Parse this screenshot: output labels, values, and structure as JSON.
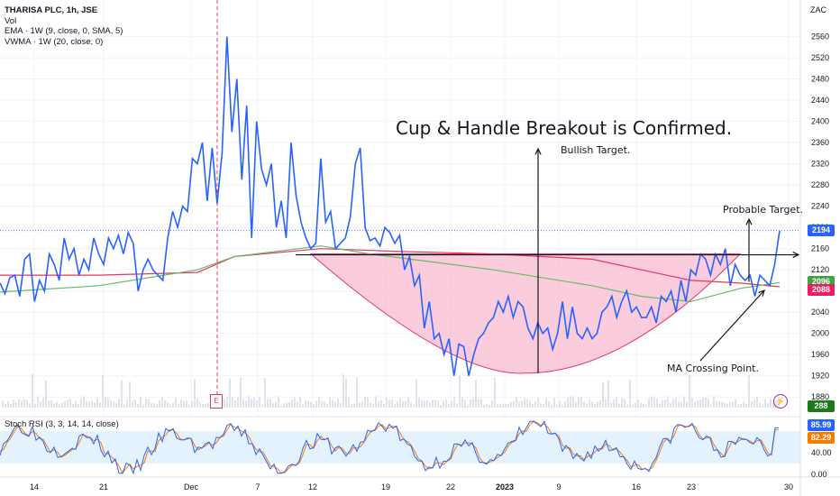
{
  "header": {
    "symbol": "THARISA PLC, 1h, JSE",
    "vol": "Vol",
    "ema": "EMA · 1W (9, close, 0, SMA, 5)",
    "vwma": "VWMA · 1W (20, close, 0)",
    "currency": "ZAC"
  },
  "annotations": {
    "title": "Cup & Handle Breakout is Confirmed.",
    "bullish_target": "Bullish Target.",
    "probable_target": "Probable Target.",
    "ma_crossing": "MA Crossing Point."
  },
  "badges": {
    "price": "2194",
    "ma_green": "2096",
    "ma_red": "2088",
    "volume": "288",
    "stoch_k": "85.99",
    "stoch_d": "82.29",
    "price_color": "#2962ff",
    "green_color": "#43a047",
    "red_color": "#e91e63",
    "volume_color": "#1b7a1b",
    "k_color": "#2962ff",
    "d_color": "#f57c00"
  },
  "events": {
    "earnings_flag": "E",
    "alert_icon": "lightning-icon"
  },
  "stoch": {
    "label": "Stoch RSI (3, 3, 14, 14, close)",
    "ticks": [
      "40.00",
      "0.00"
    ],
    "levels": [
      80,
      20
    ]
  },
  "chart_data": {
    "type": "line",
    "symbol": "THARISA PLC",
    "interval": "1h",
    "exchange": "JSE",
    "y_ticks": [
      1880,
      1920,
      1960,
      2000,
      2040,
      2080,
      2120,
      2160,
      2200,
      2240,
      2280,
      2320,
      2360,
      2400,
      2440,
      2480,
      2520,
      2560
    ],
    "x_ticks": [
      "14",
      "21",
      "Dec",
      "7",
      "12",
      "19",
      "22",
      "2023",
      "9",
      "16",
      "23",
      "30"
    ],
    "ylim": [
      1860,
      2595
    ],
    "price_series": [
      [
        0,
        2095
      ],
      [
        2,
        2075
      ],
      [
        4,
        2105
      ],
      [
        6,
        2110
      ],
      [
        8,
        2070
      ],
      [
        10,
        2140
      ],
      [
        12,
        2150
      ],
      [
        14,
        2060
      ],
      [
        16,
        2100
      ],
      [
        18,
        2080
      ],
      [
        20,
        2150
      ],
      [
        22,
        2130
      ],
      [
        24,
        2100
      ],
      [
        26,
        2180
      ],
      [
        28,
        2140
      ],
      [
        30,
        2160
      ],
      [
        32,
        2110
      ],
      [
        34,
        2140
      ],
      [
        36,
        2120
      ],
      [
        38,
        2180
      ],
      [
        40,
        2150
      ],
      [
        42,
        2130
      ],
      [
        44,
        2180
      ],
      [
        46,
        2160
      ],
      [
        48,
        2185
      ],
      [
        50,
        2150
      ],
      [
        52,
        2190
      ],
      [
        54,
        2170
      ],
      [
        56,
        2080
      ],
      [
        58,
        2120
      ],
      [
        60,
        2140
      ],
      [
        62,
        2120
      ],
      [
        64,
        2110
      ],
      [
        66,
        2100
      ],
      [
        68,
        2180
      ],
      [
        70,
        2230
      ],
      [
        72,
        2200
      ],
      [
        74,
        2240
      ],
      [
        76,
        2230
      ],
      [
        78,
        2330
      ],
      [
        80,
        2320
      ],
      [
        82,
        2360
      ],
      [
        84,
        2250
      ],
      [
        86,
        2350
      ],
      [
        88,
        2245
      ],
      [
        90,
        2340
      ],
      [
        92,
        2560
      ],
      [
        94,
        2380
      ],
      [
        96,
        2480
      ],
      [
        98,
        2290
      ],
      [
        100,
        2430
      ],
      [
        102,
        2180
      ],
      [
        104,
        2400
      ],
      [
        106,
        2310
      ],
      [
        108,
        2280
      ],
      [
        110,
        2320
      ],
      [
        112,
        2200
      ],
      [
        114,
        2250
      ],
      [
        116,
        2180
      ],
      [
        118,
        2360
      ],
      [
        120,
        2260
      ],
      [
        122,
        2210
      ],
      [
        124,
        2180
      ],
      [
        126,
        2160
      ],
      [
        128,
        2170
      ],
      [
        130,
        2330
      ],
      [
        132,
        2210
      ],
      [
        134,
        2230
      ],
      [
        136,
        2160
      ],
      [
        138,
        2170
      ],
      [
        140,
        2180
      ],
      [
        142,
        2220
      ],
      [
        144,
        2320
      ],
      [
        146,
        2350
      ],
      [
        148,
        2200
      ],
      [
        150,
        2175
      ],
      [
        152,
        2180
      ],
      [
        154,
        2165
      ],
      [
        156,
        2200
      ],
      [
        158,
        2190
      ],
      [
        160,
        2170
      ],
      [
        162,
        2185
      ],
      [
        164,
        2120
      ],
      [
        166,
        2145
      ],
      [
        168,
        2090
      ],
      [
        170,
        2110
      ],
      [
        172,
        2010
      ],
      [
        174,
        2060
      ],
      [
        176,
        1990
      ],
      [
        178,
        2000
      ],
      [
        180,
        1960
      ],
      [
        182,
        1990
      ],
      [
        184,
        1920
      ],
      [
        186,
        1980
      ],
      [
        188,
        1975
      ],
      [
        190,
        1920
      ],
      [
        192,
        1960
      ],
      [
        194,
        1990
      ],
      [
        196,
        2000
      ],
      [
        198,
        2020
      ],
      [
        200,
        2030
      ],
      [
        202,
        2060
      ],
      [
        204,
        2040
      ],
      [
        206,
        2070
      ],
      [
        208,
        2030
      ],
      [
        210,
        2060
      ],
      [
        212,
        2050
      ],
      [
        214,
        2010
      ],
      [
        216,
        1990
      ],
      [
        218,
        2020
      ],
      [
        220,
        2000
      ],
      [
        222,
        2010
      ],
      [
        224,
        1970
      ],
      [
        226,
        2000
      ],
      [
        228,
        2060
      ],
      [
        230,
        1990
      ],
      [
        232,
        2050
      ],
      [
        234,
        2000
      ],
      [
        236,
        1990
      ],
      [
        238,
        2010
      ],
      [
        240,
        1990
      ],
      [
        242,
        2000
      ],
      [
        244,
        2040
      ],
      [
        246,
        2050
      ],
      [
        248,
        2070
      ],
      [
        250,
        2030
      ],
      [
        252,
        2060
      ],
      [
        254,
        2080
      ],
      [
        256,
        2040
      ],
      [
        258,
        2050
      ],
      [
        260,
        2030
      ],
      [
        262,
        2030
      ],
      [
        264,
        2050
      ],
      [
        266,
        2020
      ],
      [
        268,
        2070
      ],
      [
        270,
        2060
      ],
      [
        272,
        2080
      ],
      [
        274,
        2040
      ],
      [
        276,
        2100
      ],
      [
        278,
        2060
      ],
      [
        280,
        2120
      ],
      [
        282,
        2110
      ],
      [
        284,
        2150
      ],
      [
        286,
        2140
      ],
      [
        288,
        2110
      ],
      [
        290,
        2150
      ],
      [
        292,
        2130
      ],
      [
        294,
        2160
      ],
      [
        296,
        2090
      ],
      [
        298,
        2130
      ],
      [
        300,
        2110
      ],
      [
        302,
        2100
      ],
      [
        304,
        2110
      ],
      [
        306,
        2070
      ],
      [
        308,
        2110
      ],
      [
        310,
        2100
      ],
      [
        312,
        2090
      ],
      [
        314,
        2130
      ],
      [
        316,
        2194
      ]
    ],
    "ema_series": [
      [
        0,
        2110
      ],
      [
        40,
        2110
      ],
      [
        80,
        2115
      ],
      [
        95,
        2145
      ],
      [
        130,
        2160
      ],
      [
        160,
        2155
      ],
      [
        200,
        2150
      ],
      [
        240,
        2140
      ],
      [
        260,
        2120
      ],
      [
        280,
        2100
      ],
      [
        300,
        2095
      ],
      [
        316,
        2088
      ]
    ],
    "vwma_series": [
      [
        0,
        2078
      ],
      [
        40,
        2090
      ],
      [
        80,
        2120
      ],
      [
        95,
        2145
      ],
      [
        130,
        2165
      ],
      [
        150,
        2150
      ],
      [
        200,
        2120
      ],
      [
        240,
        2090
      ],
      [
        260,
        2070
      ],
      [
        280,
        2060
      ],
      [
        300,
        2085
      ],
      [
        316,
        2096
      ]
    ],
    "cup_bottom_price": 1925,
    "neckline_price": 2150,
    "stoch_k": 85.99,
    "stoch_d": 82.29,
    "last_price": 2194,
    "last_volume": 288
  }
}
